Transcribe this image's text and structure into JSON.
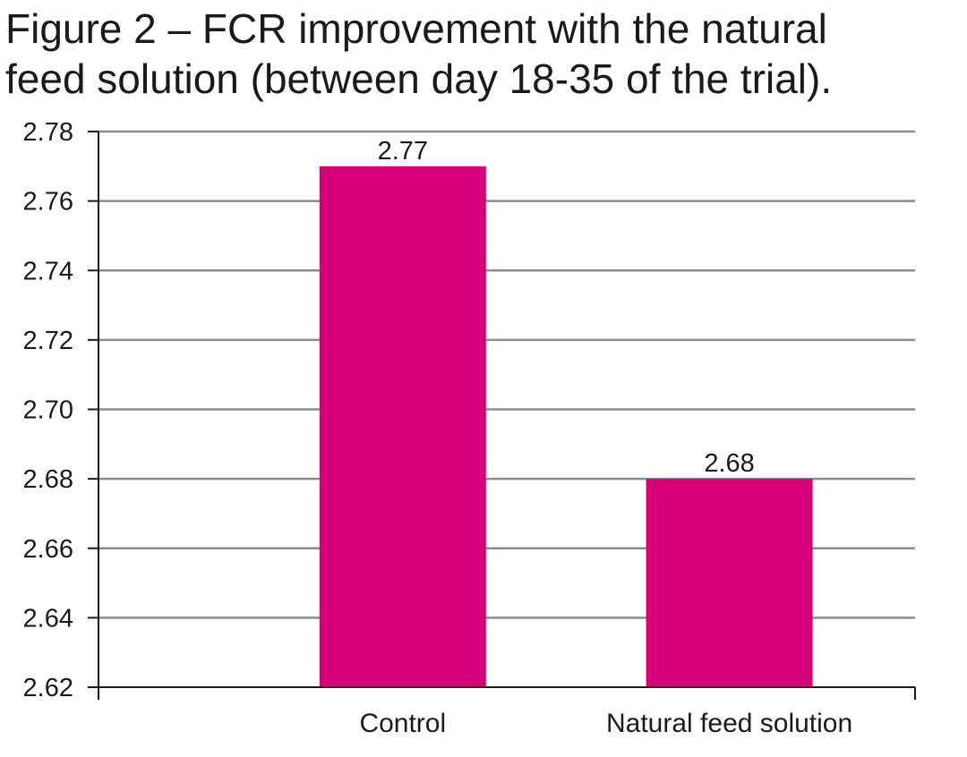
{
  "figure": {
    "title_line1": "Figure 2 – FCR improvement with the natural",
    "title_line2": "feed solution (between day 18-35 of the trial)."
  },
  "chart_data": {
    "type": "bar",
    "title": "Figure 2 – FCR improvement with the natural feed solution (between day 18-35 of the trial).",
    "categories": [
      "Control",
      "Natural feed solution"
    ],
    "values": [
      2.77,
      2.68
    ],
    "data_labels": [
      "2.77",
      "2.68"
    ],
    "ylim": [
      2.62,
      2.78
    ],
    "yticks": [
      "2.62",
      "2.64",
      "2.66",
      "2.68",
      "2.70",
      "2.72",
      "2.74",
      "2.76",
      "2.78"
    ],
    "xlabel": "",
    "ylabel": "",
    "grid": true,
    "legend": "none",
    "bar_color": "#D6007A",
    "grid_color": "#8c8c8c"
  }
}
